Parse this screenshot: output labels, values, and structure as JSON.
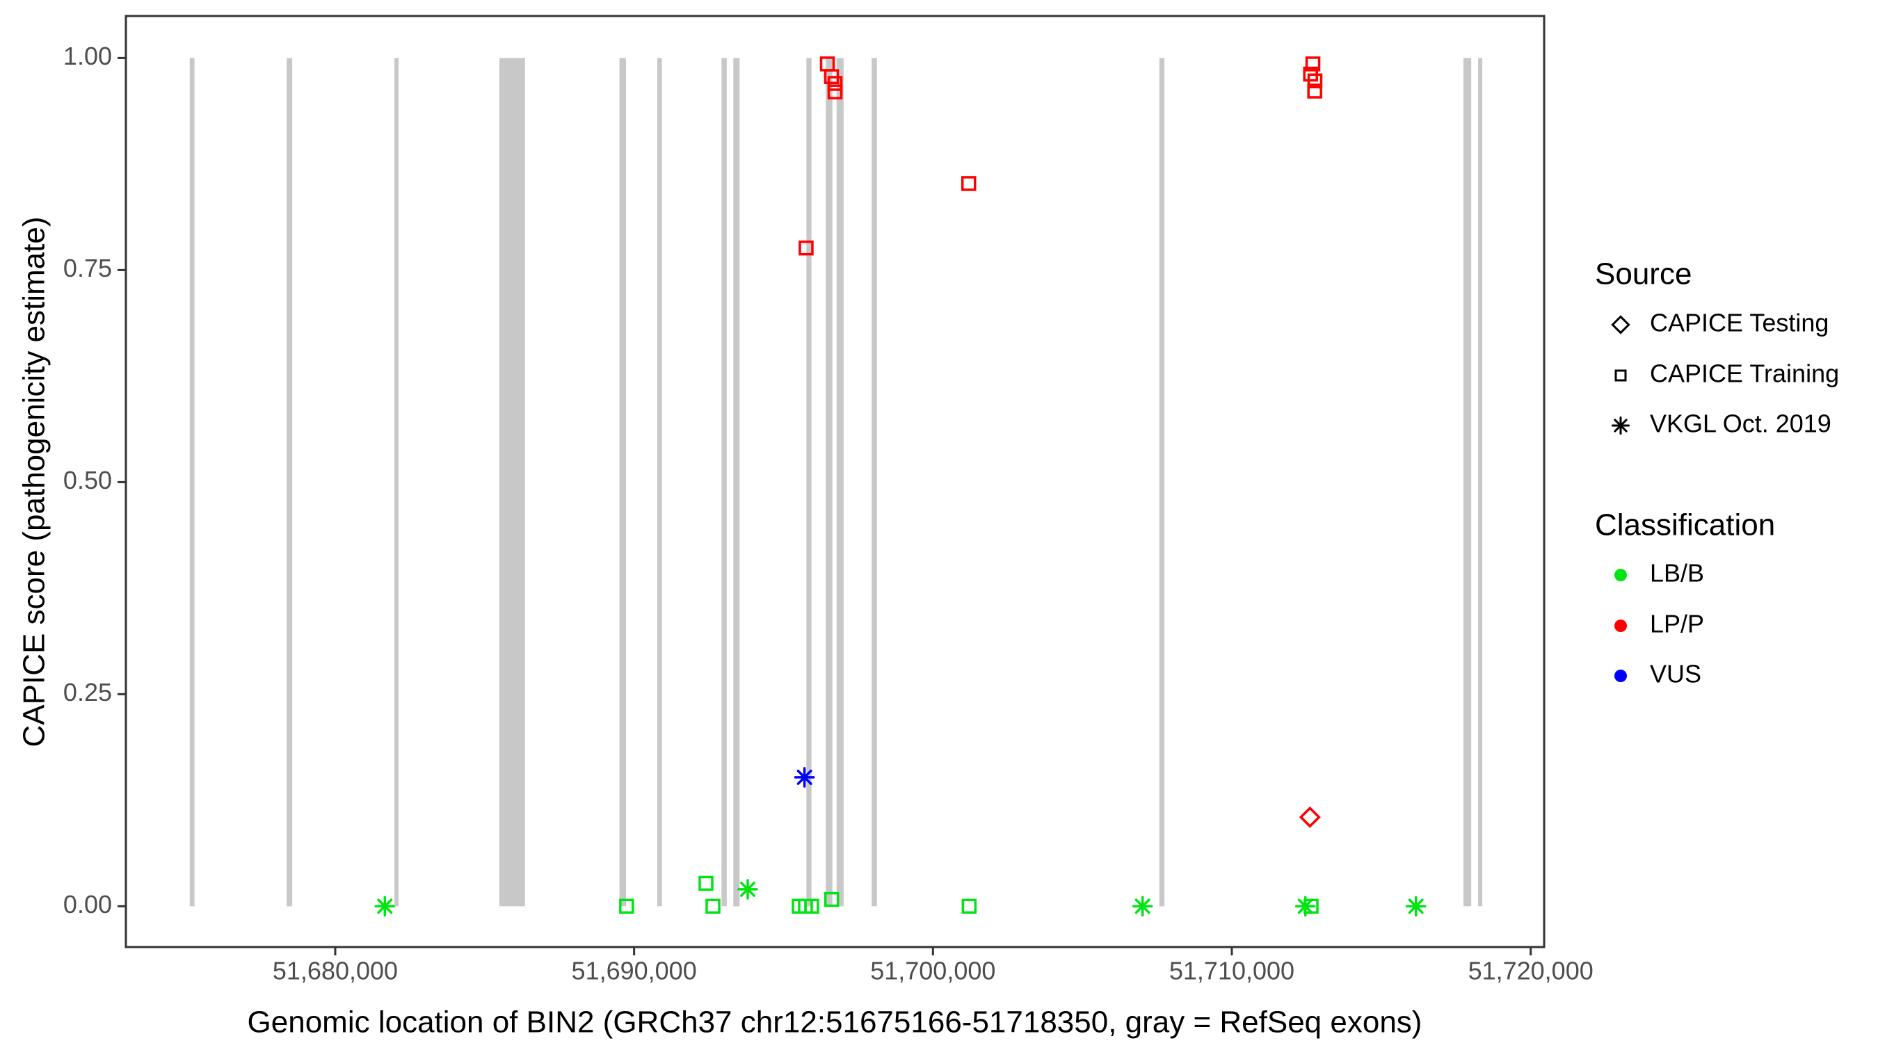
{
  "chart_data": {
    "type": "scatter",
    "title": "",
    "xlabel": "Genomic location of BIN2 (GRCh37 chr12:51675166-51718350, gray = RefSeq exons)",
    "ylabel": "CAPICE score (pathogenicity estimate)",
    "x_domain": [
      51672995,
      51720450
    ],
    "y_domain": [
      -0.0481,
      1.0495
    ],
    "grid": "off",
    "legend_position": "right",
    "x_ticks": [
      {
        "value": 51680000,
        "label": "51,680,000"
      },
      {
        "value": 51690000,
        "label": "51,690,000"
      },
      {
        "value": 51700000,
        "label": "51,700,000"
      },
      {
        "value": 51710000,
        "label": "51,710,000"
      },
      {
        "value": 51720000,
        "label": "51,720,000"
      }
    ],
    "y_ticks": [
      {
        "value": 0.0,
        "label": "0.00"
      },
      {
        "value": 0.25,
        "label": "0.25"
      },
      {
        "value": 0.5,
        "label": "0.50"
      },
      {
        "value": 0.75,
        "label": "0.75"
      },
      {
        "value": 1.0,
        "label": "1.00"
      }
    ],
    "exon_color": "#C8C8C8",
    "exons": [
      {
        "start": 51675130,
        "end": 51675290
      },
      {
        "start": 51678375,
        "end": 51678560
      },
      {
        "start": 51681980,
        "end": 51682120
      },
      {
        "start": 51685490,
        "end": 51686350
      },
      {
        "start": 51689510,
        "end": 51689730
      },
      {
        "start": 51690775,
        "end": 51690930
      },
      {
        "start": 51692925,
        "end": 51693100
      },
      {
        "start": 51693320,
        "end": 51693530
      },
      {
        "start": 51695765,
        "end": 51695935
      },
      {
        "start": 51696415,
        "end": 51696635
      },
      {
        "start": 51696775,
        "end": 51697010
      },
      {
        "start": 51697950,
        "end": 51698125
      },
      {
        "start": 51707575,
        "end": 51707745
      },
      {
        "start": 51717750,
        "end": 51718010
      },
      {
        "start": 51718240,
        "end": 51718350
      }
    ],
    "colors": {
      "LB/B": "#00E414",
      "LP/P": "#FF0000",
      "VUS": "#0000FF"
    },
    "shape_by_source": {
      "CAPICE Testing": "diamond",
      "CAPICE Training": "square",
      "VKGL Oct. 2019": "asterisk"
    },
    "points": [
      {
        "x": 51696467,
        "y": 0.993,
        "source": "CAPICE Training",
        "classification": "LP/P"
      },
      {
        "x": 51696606,
        "y": 0.978,
        "source": "CAPICE Training",
        "classification": "LP/P"
      },
      {
        "x": 51696723,
        "y": 0.97,
        "source": "CAPICE Training",
        "classification": "LP/P"
      },
      {
        "x": 51696723,
        "y": 0.96,
        "source": "CAPICE Training",
        "classification": "LP/P"
      },
      {
        "x": 51695756,
        "y": 0.776,
        "source": "CAPICE Training",
        "classification": "LP/P"
      },
      {
        "x": 51701196,
        "y": 0.852,
        "source": "CAPICE Training",
        "classification": "LP/P"
      },
      {
        "x": 51712712,
        "y": 0.993,
        "source": "CAPICE Training",
        "classification": "LP/P"
      },
      {
        "x": 51712635,
        "y": 0.981,
        "source": "CAPICE Training",
        "classification": "LP/P"
      },
      {
        "x": 51712781,
        "y": 0.973,
        "source": "CAPICE Training",
        "classification": "LP/P"
      },
      {
        "x": 51712774,
        "y": 0.961,
        "source": "CAPICE Training",
        "classification": "LP/P"
      },
      {
        "x": 51712614,
        "y": 0.105,
        "source": "CAPICE Testing",
        "classification": "LP/P"
      },
      {
        "x": 51695702,
        "y": 0.152,
        "source": "VKGL Oct. 2019",
        "classification": "VUS"
      },
      {
        "x": 51689748,
        "y": 0.0,
        "source": "CAPICE Training",
        "classification": "LB/B"
      },
      {
        "x": 51692405,
        "y": 0.027,
        "source": "CAPICE Training",
        "classification": "LB/B"
      },
      {
        "x": 51692638,
        "y": 0.0,
        "source": "CAPICE Training",
        "classification": "LB/B"
      },
      {
        "x": 51695524,
        "y": 0.0,
        "source": "CAPICE Training",
        "classification": "LB/B"
      },
      {
        "x": 51695733,
        "y": 0.0,
        "source": "CAPICE Training",
        "classification": "LB/B"
      },
      {
        "x": 51695943,
        "y": 0.0,
        "source": "CAPICE Training",
        "classification": "LB/B"
      },
      {
        "x": 51696611,
        "y": 0.008,
        "source": "CAPICE Training",
        "classification": "LB/B"
      },
      {
        "x": 51701210,
        "y": 0.0,
        "source": "CAPICE Training",
        "classification": "LB/B"
      },
      {
        "x": 51712654,
        "y": 0.0,
        "source": "CAPICE Training",
        "classification": "LB/B"
      },
      {
        "x": 51681660,
        "y": 0.0,
        "source": "VKGL Oct. 2019",
        "classification": "LB/B"
      },
      {
        "x": 51693802,
        "y": 0.02,
        "source": "VKGL Oct. 2019",
        "classification": "LB/B"
      },
      {
        "x": 51707014,
        "y": 0.0,
        "source": "VKGL Oct. 2019",
        "classification": "LB/B"
      },
      {
        "x": 51712461,
        "y": 0.0,
        "source": "VKGL Oct. 2019",
        "classification": "LB/B"
      },
      {
        "x": 51716161,
        "y": 0.0,
        "source": "VKGL Oct. 2019",
        "classification": "LB/B"
      }
    ]
  },
  "legend": {
    "source": {
      "title": "Source",
      "items": [
        {
          "label": "CAPICE Testing",
          "shape": "diamond"
        },
        {
          "label": "CAPICE Training",
          "shape": "square"
        },
        {
          "label": "VKGL Oct. 2019",
          "shape": "asterisk"
        }
      ]
    },
    "classification": {
      "title": "Classification",
      "items": [
        {
          "label": "LB/B",
          "color": "#00E414"
        },
        {
          "label": "LP/P",
          "color": "#FF0000"
        },
        {
          "label": "VUS",
          "color": "#0000FF"
        }
      ]
    }
  }
}
